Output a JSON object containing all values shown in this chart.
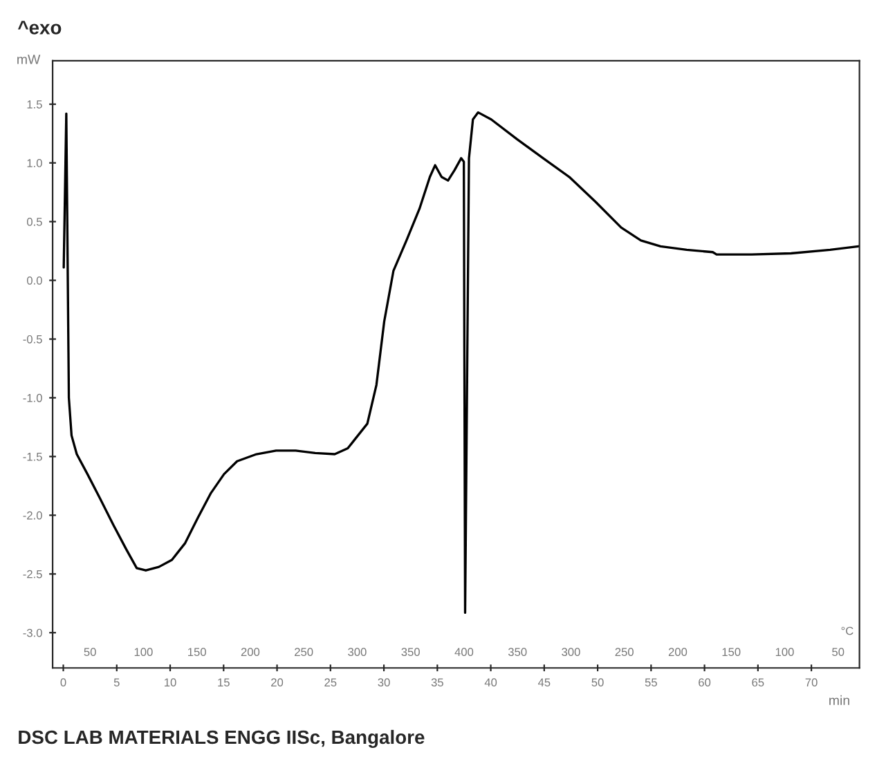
{
  "chart_data": {
    "type": "line",
    "title": "^exo",
    "xlabel": "min",
    "ylabel": "mW",
    "annotations": [
      "DSC LAB MATERIALS ENGG IISc, Bangalore",
      "50",
      "100",
      "150",
      "200",
      "250",
      "300",
      "350",
      "400",
      "350",
      "300",
      "250",
      "200",
      "150",
      "100",
      "50",
      "°C"
    ],
    "series": [
      {
        "color": "#000000",
        "x": [
          0.04,
          0.28,
          0.52,
          0.77,
          1.26,
          2.26,
          3.45,
          4.67,
          5.89,
          6.87,
          7.72,
          8.94,
          10.16,
          11.38,
          12.6,
          13.82,
          15.04,
          16.26,
          18.08,
          19.91,
          21.74,
          23.57,
          25.4,
          26.62,
          28.45,
          29.3,
          30.03,
          30.89,
          32.11,
          33.33,
          34.3,
          34.79,
          35.4,
          36.0,
          36.62,
          37.23,
          37.48,
          37.6,
          37.96,
          38.33,
          38.82,
          40.04,
          42.48,
          44.9,
          47.35,
          49.79,
          52.2,
          54.05,
          55.89,
          58.33,
          60.77,
          61.13,
          64.4,
          68.1,
          71.75,
          74.4
        ],
        "values": [
          0.11,
          1.42,
          -1.0,
          -1.32,
          -1.48,
          -1.65,
          -1.86,
          -2.08,
          -2.29,
          -2.45,
          -2.47,
          -2.44,
          -2.38,
          -2.24,
          -2.02,
          -1.81,
          -1.65,
          -1.54,
          -1.48,
          -1.45,
          -1.45,
          -1.47,
          -1.48,
          -1.43,
          -1.22,
          -0.89,
          -0.35,
          0.08,
          0.34,
          0.61,
          0.88,
          0.98,
          0.88,
          0.85,
          0.94,
          1.04,
          1.01,
          -2.83,
          1.04,
          1.37,
          1.43,
          1.37,
          1.2,
          1.04,
          0.88,
          0.67,
          0.45,
          0.34,
          0.29,
          0.26,
          0.24,
          0.22,
          0.22,
          0.23,
          0.26,
          0.29
        ]
      }
    ],
    "xlim": [
      -1,
      74.5
    ],
    "xticks": [
      0,
      5,
      10,
      15,
      20,
      25,
      30,
      35,
      40,
      45,
      50,
      55,
      60,
      65,
      70
    ],
    "ylim": [
      -3.3,
      1.87
    ],
    "yticks": [
      {
        "value": -3,
        "label": "-3.0"
      },
      -2.5,
      {
        "value": -2,
        "label": "-2.0"
      },
      -1.5,
      {
        "value": -1,
        "label": "-1.0"
      },
      -0.5,
      {
        "value": 0,
        "label": "0.0"
      },
      0.5,
      {
        "value": 1,
        "label": "1.0"
      },
      1.5
    ],
    "grid": false,
    "legend": false,
    "marker": "none",
    "line_style": "solid"
  }
}
